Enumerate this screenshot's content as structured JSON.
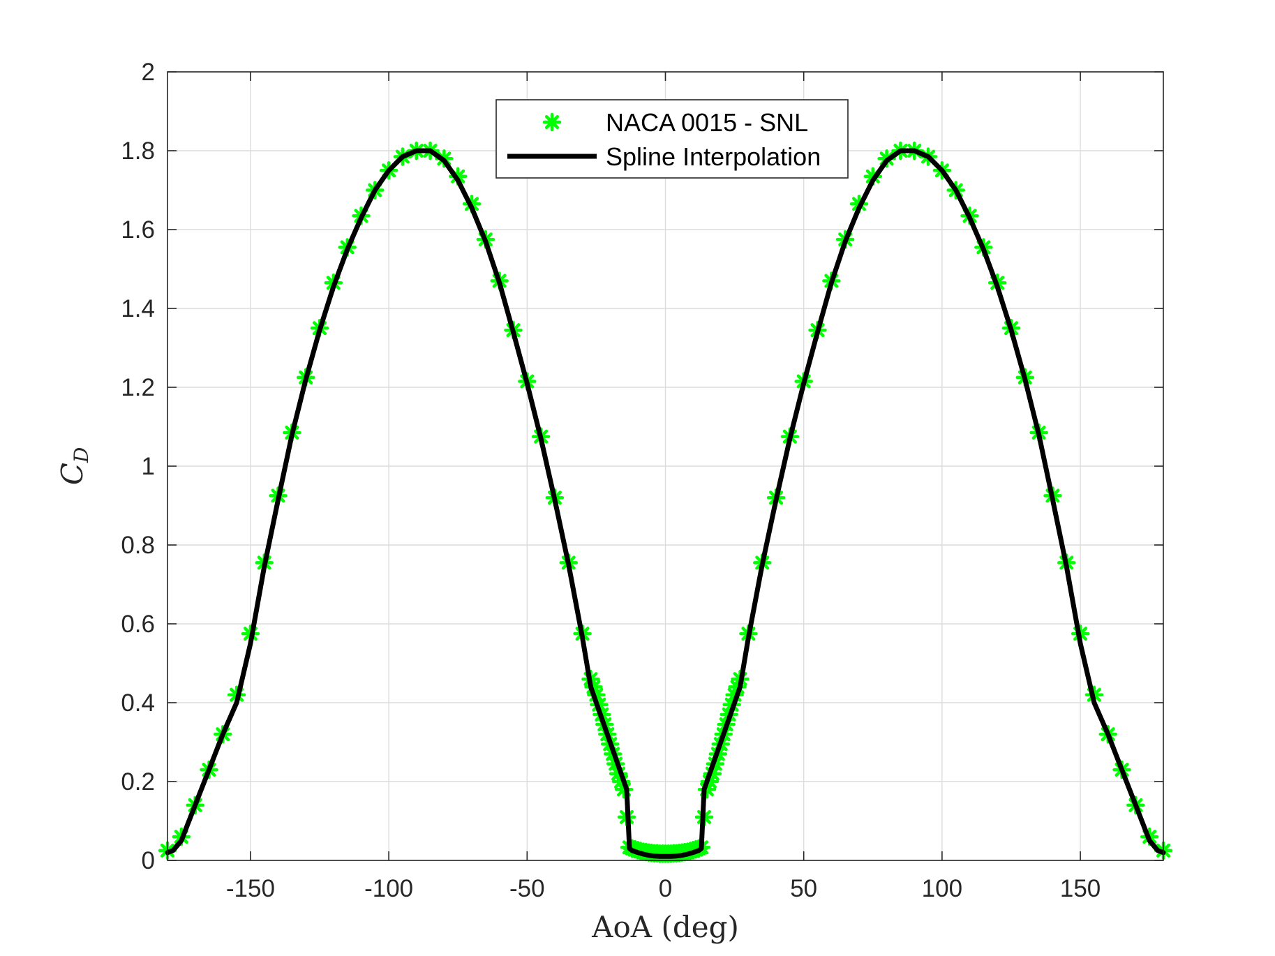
{
  "chart_data": {
    "type": "line",
    "xlabel": "AoA (deg)",
    "ylabel_base": "C",
    "ylabel_sub": "D",
    "xlim": [
      -180,
      180
    ],
    "ylim": [
      0,
      2
    ],
    "xticks": [
      -150,
      -100,
      -50,
      0,
      50,
      100,
      150
    ],
    "yticks": [
      0,
      0.2,
      0.4,
      0.6,
      0.8,
      1,
      1.2,
      1.4,
      1.6,
      1.8,
      2
    ],
    "grid": true,
    "legend_position": "top-center",
    "series": [
      {
        "name": "NACA 0015 - SNL",
        "style": "markers",
        "marker": "asterisk",
        "color": "#00ff00",
        "x": [
          -180,
          -175,
          -170,
          -165,
          -160,
          -155,
          -150,
          -145,
          -140,
          -135,
          -130,
          -125,
          -120,
          -115,
          -110,
          -105,
          -100,
          -95,
          -90,
          -85,
          -80,
          -75,
          -70,
          -65,
          -60,
          -55,
          -50,
          -45,
          -40,
          -35,
          -30,
          -27,
          -26,
          -25,
          -24,
          -23,
          -22,
          -21,
          -20,
          -19,
          -18,
          -17,
          -16,
          -15,
          -14,
          -13,
          -12,
          -11,
          -10,
          -9,
          -8,
          -7,
          -6,
          -5,
          -4,
          -3,
          -2,
          -1,
          0,
          1,
          2,
          3,
          4,
          5,
          6,
          7,
          8,
          9,
          10,
          11,
          12,
          13,
          14,
          15,
          16,
          17,
          18,
          19,
          20,
          21,
          22,
          23,
          24,
          25,
          26,
          27,
          30,
          35,
          40,
          45,
          50,
          55,
          60,
          65,
          70,
          75,
          80,
          85,
          90,
          95,
          100,
          105,
          110,
          115,
          120,
          125,
          130,
          135,
          140,
          145,
          150,
          155,
          160,
          165,
          170,
          175,
          180
        ],
        "y": [
          0.025,
          0.06,
          0.14,
          0.23,
          0.32,
          0.42,
          0.575,
          0.755,
          0.925,
          1.085,
          1.225,
          1.35,
          1.465,
          1.555,
          1.635,
          1.7,
          1.75,
          1.785,
          1.8,
          1.8,
          1.78,
          1.735,
          1.665,
          1.575,
          1.47,
          1.345,
          1.215,
          1.075,
          0.92,
          0.755,
          0.575,
          0.46,
          0.44,
          0.42,
          0.395,
          0.37,
          0.345,
          0.32,
          0.295,
          0.27,
          0.245,
          0.22,
          0.2,
          0.18,
          0.11,
          0.033,
          0.03,
          0.028,
          0.026,
          0.024,
          0.022,
          0.021,
          0.02,
          0.019,
          0.018,
          0.018,
          0.017,
          0.017,
          0.017,
          0.017,
          0.017,
          0.018,
          0.018,
          0.019,
          0.02,
          0.021,
          0.022,
          0.024,
          0.026,
          0.028,
          0.03,
          0.033,
          0.11,
          0.18,
          0.2,
          0.22,
          0.245,
          0.27,
          0.295,
          0.32,
          0.345,
          0.37,
          0.395,
          0.42,
          0.44,
          0.46,
          0.575,
          0.755,
          0.92,
          1.075,
          1.215,
          1.345,
          1.47,
          1.575,
          1.665,
          1.735,
          1.78,
          1.8,
          1.8,
          1.785,
          1.75,
          1.7,
          1.635,
          1.555,
          1.465,
          1.35,
          1.225,
          1.085,
          0.925,
          0.755,
          0.575,
          0.42,
          0.32,
          0.23,
          0.14,
          0.06,
          0.025
        ]
      },
      {
        "name": "Spline Interpolation",
        "style": "line",
        "color": "#000000",
        "x": [
          -180,
          -178,
          -175,
          -170,
          -165,
          -160,
          -155,
          -150,
          -145,
          -140,
          -135,
          -130,
          -125,
          -120,
          -115,
          -110,
          -105,
          -100,
          -95,
          -90,
          -85,
          -80,
          -75,
          -70,
          -65,
          -60,
          -55,
          -50,
          -45,
          -40,
          -35,
          -30,
          -27,
          -25,
          -20,
          -16,
          -14,
          -13,
          -12,
          -10,
          -8,
          -6,
          -4,
          -2,
          0,
          2,
          4,
          6,
          8,
          10,
          12,
          13,
          14,
          16,
          20,
          25,
          27,
          30,
          35,
          40,
          45,
          50,
          55,
          60,
          65,
          70,
          75,
          80,
          85,
          90,
          95,
          100,
          105,
          110,
          115,
          120,
          125,
          130,
          135,
          140,
          145,
          150,
          155,
          160,
          165,
          170,
          175,
          178,
          180
        ],
        "y": [
          0.02,
          0.025,
          0.05,
          0.14,
          0.23,
          0.32,
          0.4,
          0.55,
          0.745,
          0.915,
          1.08,
          1.22,
          1.345,
          1.455,
          1.55,
          1.63,
          1.7,
          1.75,
          1.785,
          1.8,
          1.8,
          1.775,
          1.725,
          1.655,
          1.57,
          1.465,
          1.34,
          1.21,
          1.07,
          0.915,
          0.75,
          0.565,
          0.44,
          0.4,
          0.3,
          0.22,
          0.18,
          0.03,
          0.025,
          0.02,
          0.016,
          0.013,
          0.011,
          0.01,
          0.01,
          0.01,
          0.011,
          0.013,
          0.016,
          0.02,
          0.025,
          0.03,
          0.18,
          0.22,
          0.3,
          0.4,
          0.44,
          0.565,
          0.75,
          0.915,
          1.07,
          1.21,
          1.34,
          1.465,
          1.57,
          1.655,
          1.725,
          1.775,
          1.8,
          1.8,
          1.785,
          1.75,
          1.7,
          1.63,
          1.55,
          1.455,
          1.345,
          1.22,
          1.08,
          0.915,
          0.745,
          0.55,
          0.4,
          0.32,
          0.23,
          0.14,
          0.05,
          0.025,
          0.02
        ]
      }
    ]
  }
}
